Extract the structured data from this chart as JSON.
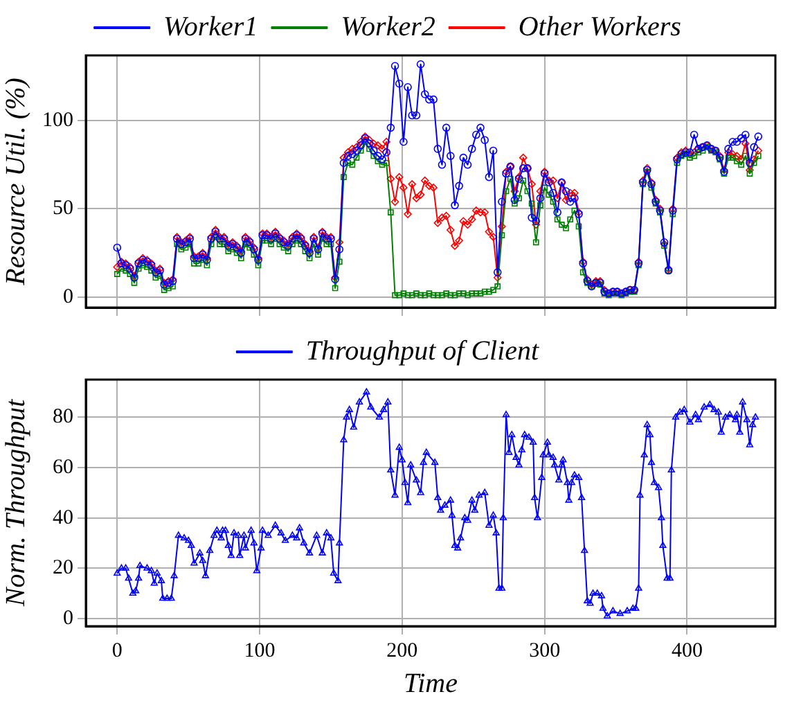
{
  "chart_data": [
    {
      "type": "line",
      "ylabel": "Resource Util. (%)",
      "x": [
        0,
        3,
        6,
        9,
        12,
        15,
        18,
        21,
        24,
        27,
        30,
        33,
        36,
        39,
        42,
        45,
        48,
        51,
        54,
        57,
        60,
        63,
        66,
        69,
        72,
        75,
        78,
        81,
        84,
        87,
        90,
        93,
        96,
        99,
        102,
        105,
        108,
        111,
        114,
        117,
        120,
        123,
        126,
        129,
        132,
        135,
        138,
        141,
        144,
        147,
        150,
        153,
        156,
        159,
        162,
        165,
        168,
        171,
        174,
        177,
        180,
        183,
        186,
        189,
        192,
        195,
        198,
        201,
        204,
        207,
        210,
        213,
        216,
        219,
        222,
        225,
        228,
        231,
        234,
        237,
        240,
        243,
        246,
        249,
        252,
        255,
        258,
        261,
        264,
        267,
        270,
        273,
        276,
        279,
        282,
        285,
        288,
        291,
        294,
        297,
        300,
        303,
        306,
        309,
        312,
        315,
        318,
        321,
        324,
        327,
        330,
        333,
        336,
        339,
        342,
        345,
        348,
        351,
        354,
        357,
        360,
        363,
        366,
        369,
        372,
        375,
        378,
        381,
        384,
        387,
        390,
        393,
        396,
        399,
        402,
        405,
        408,
        411,
        414,
        417,
        420,
        423,
        426,
        429,
        432,
        435,
        438,
        441,
        444,
        447,
        450
      ],
      "series": [
        {
          "name": "Worker1",
          "color": "#0000ff",
          "marker": "circle",
          "values": [
            28,
            19,
            18,
            16,
            11,
            19,
            21,
            20,
            18,
            14,
            15,
            7,
            8,
            9,
            33,
            30,
            31,
            33,
            22,
            22,
            24,
            21,
            33,
            37,
            33,
            33,
            29,
            30,
            28,
            25,
            33,
            31,
            27,
            21,
            35,
            35,
            33,
            36,
            33,
            31,
            29,
            33,
            35,
            33,
            29,
            25,
            33,
            27,
            36,
            33,
            33,
            10,
            27,
            76,
            80,
            81,
            83,
            86,
            90,
            87,
            83,
            80,
            78,
            82,
            96,
            131,
            121,
            88,
            119,
            103,
            103,
            132,
            115,
            112,
            112,
            84,
            75,
            96,
            80,
            52,
            63,
            79,
            75,
            84,
            92,
            96,
            89,
            68,
            83,
            14,
            54,
            70,
            74,
            55,
            67,
            73,
            73,
            45,
            43,
            56,
            70,
            65,
            59,
            48,
            65,
            60,
            54,
            56,
            47,
            19,
            9,
            6,
            8,
            8,
            3,
            2,
            3,
            3,
            2,
            3,
            4,
            4,
            19,
            65,
            72,
            64,
            54,
            49,
            31,
            15,
            49,
            78,
            81,
            82,
            82,
            92,
            84,
            85,
            86,
            84,
            83,
            79,
            71,
            84,
            88,
            88,
            90,
            92,
            76,
            85,
            91
          ]
        },
        {
          "name": "Worker2",
          "color": "#008000",
          "marker": "square",
          "values": [
            13,
            16,
            15,
            13,
            8,
            16,
            18,
            17,
            15,
            11,
            12,
            4,
            5,
            6,
            30,
            27,
            28,
            30,
            19,
            19,
            21,
            18,
            30,
            34,
            30,
            30,
            26,
            27,
            25,
            22,
            30,
            28,
            24,
            18,
            32,
            32,
            30,
            33,
            30,
            28,
            26,
            30,
            32,
            30,
            26,
            22,
            30,
            24,
            33,
            30,
            30,
            5,
            20,
            68,
            76,
            75,
            79,
            83,
            88,
            84,
            80,
            77,
            75,
            76,
            48,
            1,
            1,
            2,
            1,
            1,
            2,
            1,
            1,
            2,
            1,
            1,
            1,
            2,
            1,
            1,
            2,
            2,
            1,
            2,
            2,
            2,
            3,
            3,
            4,
            6,
            35,
            60,
            67,
            53,
            56,
            66,
            60,
            53,
            31,
            52,
            62,
            58,
            54,
            44,
            41,
            39,
            44,
            49,
            40,
            14,
            8,
            6,
            8,
            7,
            2,
            1,
            2,
            2,
            1,
            2,
            3,
            3,
            18,
            64,
            71,
            62,
            53,
            48,
            29,
            15,
            47,
            76,
            80,
            81,
            79,
            80,
            82,
            83,
            85,
            83,
            82,
            78,
            70,
            79,
            79,
            77,
            75,
            80,
            70,
            76,
            80
          ]
        },
        {
          "name": "Other Workers",
          "color": "#ff0000",
          "marker": "diamond",
          "values": [
            17,
            20,
            19,
            17,
            12,
            20,
            22,
            21,
            19,
            15,
            16,
            8,
            9,
            10,
            34,
            31,
            32,
            34,
            23,
            23,
            25,
            22,
            34,
            38,
            34,
            34,
            30,
            31,
            29,
            26,
            34,
            32,
            28,
            22,
            36,
            36,
            34,
            37,
            34,
            32,
            30,
            34,
            36,
            34,
            30,
            26,
            34,
            28,
            37,
            34,
            34,
            11,
            31,
            79,
            82,
            84,
            85,
            88,
            91,
            89,
            87,
            86,
            84,
            88,
            67,
            54,
            68,
            62,
            47,
            64,
            56,
            58,
            66,
            63,
            62,
            42,
            45,
            46,
            38,
            29,
            32,
            43,
            41,
            44,
            49,
            48,
            48,
            37,
            34,
            11,
            40,
            71,
            74,
            60,
            68,
            79,
            73,
            64,
            41,
            60,
            71,
            66,
            66,
            56,
            65,
            55,
            59,
            59,
            48,
            20,
            10,
            7,
            9,
            9,
            4,
            2,
            3,
            3,
            2,
            3,
            4,
            4,
            20,
            66,
            73,
            65,
            55,
            50,
            30,
            16,
            50,
            79,
            82,
            83,
            81,
            82,
            84,
            85,
            86,
            84,
            83,
            80,
            72,
            82,
            81,
            80,
            78,
            87,
            72,
            78,
            83
          ]
        }
      ],
      "xlim": [
        -22,
        462
      ],
      "xticks": [
        0,
        100,
        200,
        300,
        400
      ],
      "ylim": [
        -6,
        137
      ],
      "yticks": [
        0,
        50,
        100
      ],
      "grid": true,
      "legend": "top",
      "tick_labels": "y",
      "line_style": "solid"
    },
    {
      "type": "line",
      "xlabel": "Time",
      "ylabel": "Norm. Throughput",
      "series": [
        {
          "name": "Throughput of Client",
          "color": "#0000ff",
          "marker": "triangle",
          "x": [
            0,
            3,
            6,
            8,
            11,
            13,
            15,
            16,
            21,
            24,
            26,
            28,
            31,
            32,
            35,
            38,
            40,
            43,
            47,
            50,
            52,
            54,
            58,
            60,
            62,
            65,
            68,
            70,
            73,
            74,
            76,
            78,
            80,
            82,
            85,
            86,
            89,
            90,
            94,
            96,
            98,
            101,
            102,
            106,
            111,
            115,
            118,
            123,
            126,
            128,
            131,
            135,
            140,
            144,
            147,
            150,
            152,
            155,
            156,
            159,
            161,
            163,
            166,
            170,
            175,
            178,
            184,
            187,
            190,
            192,
            195,
            198,
            200,
            202,
            204,
            206,
            210,
            213,
            215,
            217,
            223,
            225,
            227,
            230,
            234,
            235,
            237,
            239,
            241,
            244,
            246,
            249,
            251,
            254,
            258,
            261,
            264,
            266,
            268,
            270,
            271,
            273,
            275,
            277,
            280,
            282,
            284,
            286,
            289,
            292,
            293,
            295,
            298,
            299,
            302,
            303,
            306,
            307,
            310,
            312,
            313,
            316,
            317,
            319,
            321,
            324,
            326,
            328,
            330,
            332,
            334,
            337,
            340,
            341,
            344,
            348,
            353,
            358,
            362,
            364,
            366,
            367,
            370,
            372,
            374,
            375,
            377,
            380,
            382,
            383,
            386,
            388,
            389,
            392,
            395,
            398,
            402,
            406,
            408,
            412,
            416,
            419,
            422,
            424,
            427,
            430,
            434,
            435,
            437,
            439,
            442,
            444,
            446,
            448
          ],
          "values": [
            18,
            20,
            20,
            16,
            10,
            11,
            16,
            21,
            20,
            19,
            14,
            18,
            15,
            8,
            8,
            8,
            17,
            33,
            32,
            31,
            29,
            22,
            26,
            23,
            17,
            27,
            33,
            35,
            32,
            35,
            35,
            29,
            25,
            34,
            33,
            25,
            33,
            28,
            35,
            30,
            19,
            28,
            35,
            33,
            37,
            34,
            31,
            33,
            32,
            36,
            30,
            26,
            33,
            26,
            34,
            32,
            18,
            15,
            30,
            71,
            80,
            83,
            76,
            86,
            90,
            84,
            80,
            83,
            86,
            59,
            49,
            68,
            63,
            54,
            46,
            61,
            55,
            50,
            62,
            66,
            62,
            48,
            43,
            45,
            47,
            41,
            29,
            28,
            32,
            40,
            39,
            47,
            43,
            49,
            50,
            37,
            41,
            34,
            12,
            12,
            40,
            81,
            66,
            73,
            64,
            61,
            67,
            73,
            72,
            70,
            48,
            40,
            56,
            65,
            70,
            65,
            64,
            61,
            55,
            61,
            63,
            54,
            47,
            54,
            57,
            56,
            48,
            27,
            7,
            6,
            10,
            10,
            9,
            4,
            1,
            3,
            2,
            3,
            4,
            4,
            12,
            49,
            65,
            77,
            73,
            62,
            54,
            52,
            40,
            29,
            16,
            16,
            59,
            80,
            82,
            83,
            78,
            81,
            79,
            84,
            85,
            83,
            82,
            74,
            80,
            81,
            79,
            81,
            74,
            86,
            79,
            69,
            77,
            80
          ]
        }
      ],
      "xlim": [
        -22,
        462
      ],
      "xticks": [
        0,
        100,
        200,
        300,
        400
      ],
      "ylim": [
        -3,
        95
      ],
      "yticks": [
        0,
        20,
        40,
        60,
        80
      ],
      "grid": true,
      "legend": "top",
      "line_style": "solid"
    }
  ]
}
